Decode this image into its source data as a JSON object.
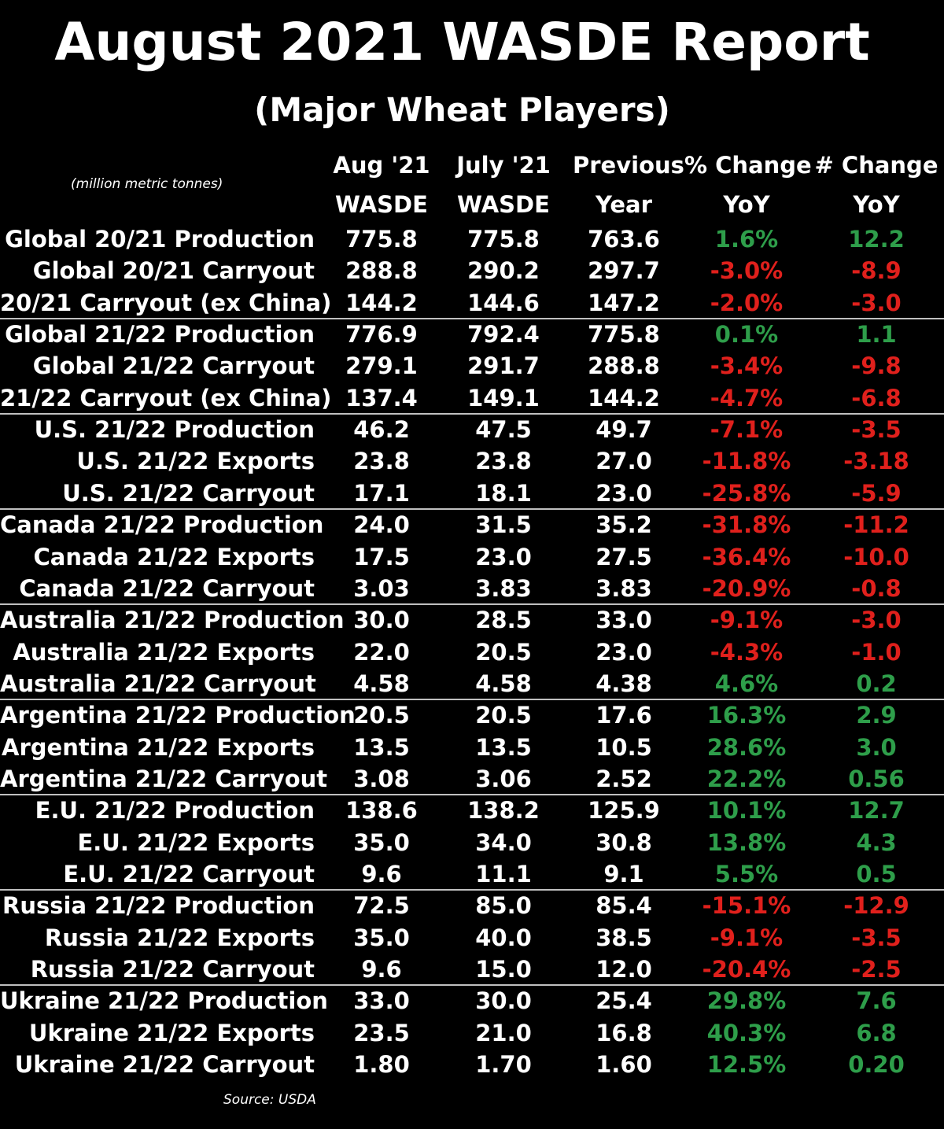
{
  "title": "August 2021 WASDE Report",
  "subtitle": "(Major Wheat Players)",
  "units_note": "(million metric tonnes)",
  "source": "Source: USDA",
  "colors": {
    "positive": "#2e9e4a",
    "negative": "#e0201c",
    "text": "#ffffff",
    "background": "#000000"
  },
  "chart_data": {
    "type": "table",
    "columns": [
      {
        "line1": "Aug '21",
        "line2": "WASDE"
      },
      {
        "line1": "July '21",
        "line2": "WASDE"
      },
      {
        "line1": "Previous",
        "line2": "Year"
      },
      {
        "line1": "% Change",
        "line2": "YoY"
      },
      {
        "line1": "# Change",
        "line2": "YoY"
      }
    ],
    "rows": [
      {
        "label": "Global 20/21 Production",
        "aug": "775.8",
        "july": "775.8",
        "prev": "763.6",
        "pct": "1.6%",
        "num": "12.2",
        "sign": "positive"
      },
      {
        "label": "Global 20/21 Carryout",
        "aug": "288.8",
        "july": "290.2",
        "prev": "297.7",
        "pct": "-3.0%",
        "num": "-8.9",
        "sign": "negative"
      },
      {
        "label": "20/21 Carryout (ex China)",
        "aug": "144.2",
        "july": "144.6",
        "prev": "147.2",
        "pct": "-2.0%",
        "num": "-3.0",
        "sign": "negative"
      },
      {
        "label": "Global 21/22 Production",
        "aug": "776.9",
        "july": "792.4",
        "prev": "775.8",
        "pct": "0.1%",
        "num": "1.1",
        "sign": "positive"
      },
      {
        "label": "Global 21/22 Carryout",
        "aug": "279.1",
        "july": "291.7",
        "prev": "288.8",
        "pct": "-3.4%",
        "num": "-9.8",
        "sign": "negative"
      },
      {
        "label": "21/22 Carryout (ex China)",
        "aug": "137.4",
        "july": "149.1",
        "prev": "144.2",
        "pct": "-4.7%",
        "num": "-6.8",
        "sign": "negative"
      },
      {
        "label": "U.S. 21/22 Production",
        "aug": "46.2",
        "july": "47.5",
        "prev": "49.7",
        "pct": "-7.1%",
        "num": "-3.5",
        "sign": "negative"
      },
      {
        "label": "U.S. 21/22 Exports",
        "aug": "23.8",
        "july": "23.8",
        "prev": "27.0",
        "pct": "-11.8%",
        "num": "-3.18",
        "sign": "negative"
      },
      {
        "label": "U.S. 21/22 Carryout",
        "aug": "17.1",
        "july": "18.1",
        "prev": "23.0",
        "pct": "-25.8%",
        "num": "-5.9",
        "sign": "negative"
      },
      {
        "label": "Canada 21/22 Production",
        "aug": "24.0",
        "july": "31.5",
        "prev": "35.2",
        "pct": "-31.8%",
        "num": "-11.2",
        "sign": "negative"
      },
      {
        "label": "Canada 21/22 Exports",
        "aug": "17.5",
        "july": "23.0",
        "prev": "27.5",
        "pct": "-36.4%",
        "num": "-10.0",
        "sign": "negative"
      },
      {
        "label": "Canada 21/22 Carryout",
        "aug": "3.03",
        "july": "3.83",
        "prev": "3.83",
        "pct": "-20.9%",
        "num": "-0.8",
        "sign": "negative"
      },
      {
        "label": "Australia 21/22 Production",
        "aug": "30.0",
        "july": "28.5",
        "prev": "33.0",
        "pct": "-9.1%",
        "num": "-3.0",
        "sign": "negative"
      },
      {
        "label": "Australia 21/22 Exports",
        "aug": "22.0",
        "july": "20.5",
        "prev": "23.0",
        "pct": "-4.3%",
        "num": "-1.0",
        "sign": "negative"
      },
      {
        "label": "Australia 21/22 Carryout",
        "aug": "4.58",
        "july": "4.58",
        "prev": "4.38",
        "pct": "4.6%",
        "num": "0.2",
        "sign": "positive"
      },
      {
        "label": "Argentina 21/22 Production",
        "aug": "20.5",
        "july": "20.5",
        "prev": "17.6",
        "pct": "16.3%",
        "num": "2.9",
        "sign": "positive"
      },
      {
        "label": "Argentina 21/22 Exports",
        "aug": "13.5",
        "july": "13.5",
        "prev": "10.5",
        "pct": "28.6%",
        "num": "3.0",
        "sign": "positive"
      },
      {
        "label": "Argentina 21/22 Carryout",
        "aug": "3.08",
        "july": "3.06",
        "prev": "2.52",
        "pct": "22.2%",
        "num": "0.56",
        "sign": "positive"
      },
      {
        "label": "E.U. 21/22 Production",
        "aug": "138.6",
        "july": "138.2",
        "prev": "125.9",
        "pct": "10.1%",
        "num": "12.7",
        "sign": "positive"
      },
      {
        "label": "E.U. 21/22 Exports",
        "aug": "35.0",
        "july": "34.0",
        "prev": "30.8",
        "pct": "13.8%",
        "num": "4.3",
        "sign": "positive"
      },
      {
        "label": "E.U. 21/22 Carryout",
        "aug": "9.6",
        "july": "11.1",
        "prev": "9.1",
        "pct": "5.5%",
        "num": "0.5",
        "sign": "positive"
      },
      {
        "label": "Russia 21/22 Production",
        "aug": "72.5",
        "july": "85.0",
        "prev": "85.4",
        "pct": "-15.1%",
        "num": "-12.9",
        "sign": "negative"
      },
      {
        "label": "Russia 21/22 Exports",
        "aug": "35.0",
        "july": "40.0",
        "prev": "38.5",
        "pct": "-9.1%",
        "num": "-3.5",
        "sign": "negative"
      },
      {
        "label": "Russia 21/22 Carryout",
        "aug": "9.6",
        "july": "15.0",
        "prev": "12.0",
        "pct": "-20.4%",
        "num": "-2.5",
        "sign": "negative"
      },
      {
        "label": "Ukraine 21/22 Production",
        "aug": "33.0",
        "july": "30.0",
        "prev": "25.4",
        "pct": "29.8%",
        "num": "7.6",
        "sign": "positive"
      },
      {
        "label": "Ukraine 21/22 Exports",
        "aug": "23.5",
        "july": "21.0",
        "prev": "16.8",
        "pct": "40.3%",
        "num": "6.8",
        "sign": "positive"
      },
      {
        "label": "Ukraine 21/22 Carryout",
        "aug": "1.80",
        "july": "1.70",
        "prev": "1.60",
        "pct": "12.5%",
        "num": "0.20",
        "sign": "positive"
      }
    ]
  }
}
